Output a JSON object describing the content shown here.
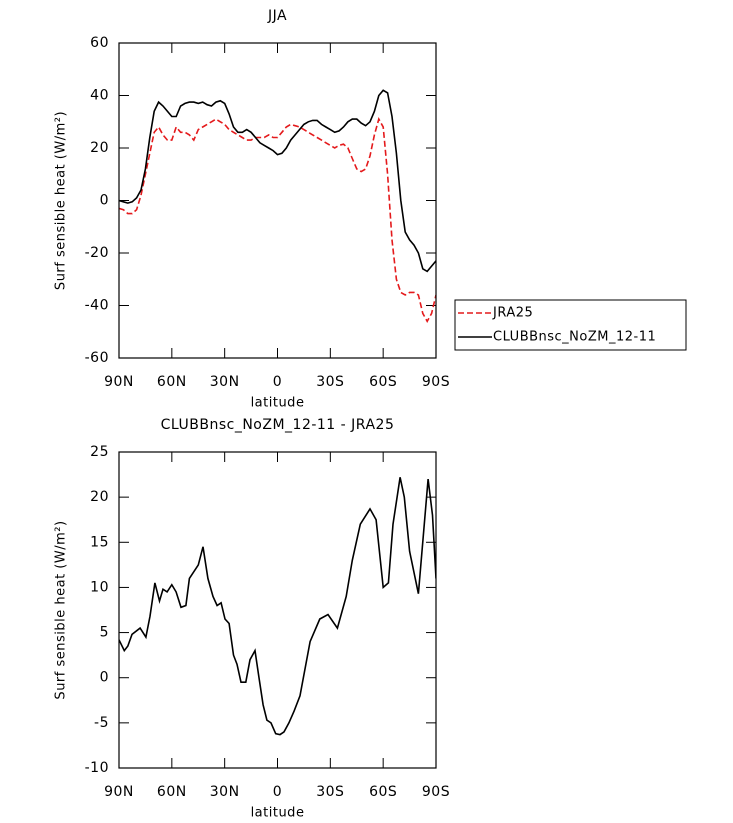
{
  "chart_data": [
    {
      "type": "line",
      "title": "JJA",
      "xlabel": "latitude",
      "ylabel": "Surf sensible heat (W/m²)",
      "x": [
        90,
        87.5,
        85,
        82.5,
        80,
        77.5,
        75,
        72.5,
        70,
        67.5,
        65,
        62.5,
        60,
        57.5,
        55,
        52.5,
        50,
        47.5,
        45,
        42.5,
        40,
        37.5,
        35,
        32.5,
        30,
        27.5,
        25,
        22.5,
        20,
        17.5,
        15,
        12.5,
        10,
        7.5,
        5,
        2.5,
        0,
        -2.5,
        -5,
        -7.5,
        -10,
        -12.5,
        -15,
        -17.5,
        -20,
        -22.5,
        -25,
        -27.5,
        -30,
        -32.5,
        -35,
        -37.5,
        -40,
        -42.5,
        -45,
        -47.5,
        -50,
        -52.5,
        -55,
        -57.5,
        -60,
        -62.5,
        -65,
        -67.5,
        -70,
        -72.5,
        -75,
        -77.5,
        -80,
        -82.5,
        -85,
        -87.5,
        -90
      ],
      "series": [
        {
          "name": "JRA25",
          "color": "#e41a1c",
          "dash": true,
          "values": [
            -3,
            -3.5,
            -5,
            -5,
            -3.5,
            2,
            10,
            18,
            26,
            28,
            25,
            23,
            23,
            28,
            26,
            26,
            25,
            23,
            27,
            28,
            29,
            30,
            31,
            30,
            29,
            27,
            26,
            25,
            24,
            23,
            23,
            24,
            24,
            24,
            25,
            24,
            24,
            26,
            28,
            29,
            28.5,
            28,
            27,
            26,
            25,
            24,
            23,
            22,
            21,
            20,
            21,
            21.5,
            20,
            16,
            12,
            11,
            12,
            17,
            25,
            31,
            28,
            10,
            -15,
            -30,
            -35,
            -36,
            -35,
            -35,
            -36,
            -43,
            -46,
            -43,
            -36
          ]
        },
        {
          "name": "CLUBBnsc_NoZM_12-11",
          "color": "#000000",
          "dash": false,
          "values": [
            0,
            -0.5,
            -1,
            -0.5,
            1,
            4,
            12,
            24,
            34,
            37.5,
            36,
            34,
            32,
            32,
            36,
            37,
            37.5,
            37.5,
            37,
            37.5,
            36.5,
            36,
            37.5,
            38,
            37,
            33,
            28,
            26,
            26,
            27,
            26,
            24,
            22,
            21,
            20,
            19,
            17.5,
            18,
            20,
            23,
            25,
            27,
            29,
            30,
            30.5,
            30.5,
            29,
            28,
            27,
            26,
            26.5,
            28,
            30,
            31,
            31,
            29.5,
            28.5,
            30,
            34,
            40,
            42,
            41,
            32,
            18,
            0,
            -12,
            -15,
            -17,
            -20,
            -26,
            -27,
            -25,
            -23
          ]
        }
      ],
      "xlim": [
        90,
        -90
      ],
      "xticks": [
        {
          "value": 90,
          "label": "90N"
        },
        {
          "value": 60,
          "label": "60N"
        },
        {
          "value": 30,
          "label": "30N"
        },
        0,
        {
          "value": -30,
          "label": "30S"
        },
        {
          "value": -60,
          "label": "60S"
        },
        {
          "value": -90,
          "label": "90S"
        }
      ],
      "ylim": [
        -60,
        60
      ],
      "yticks": [
        -60,
        -40,
        -20,
        0,
        20,
        40,
        60
      ],
      "legend": "right"
    },
    {
      "type": "line",
      "title": "CLUBBnsc_NoZM_12-11 - JRA25",
      "xlabel": "latitude",
      "ylabel": "Surf sensible heat (W/m²)",
      "x": [
        90,
        87,
        85,
        82.6,
        78,
        74.7,
        72.4,
        69.6,
        67,
        65,
        62.7,
        60,
        57.6,
        54.8,
        52,
        50,
        45,
        42.3,
        39.5,
        36.6,
        34.3,
        32,
        29.8,
        27.5,
        25,
        23,
        20.7,
        18,
        15.6,
        12.8,
        10.5,
        8.2,
        6,
        3.7,
        1,
        -1.4,
        -3.7,
        -6.5,
        -9.4,
        -12.8,
        -18.5,
        -24,
        -28.7,
        -34,
        -39,
        -42.5,
        -47,
        -52.5,
        -56,
        -60,
        -63,
        -65.6,
        -69.6,
        -72,
        -75,
        -80,
        -85.5,
        -88,
        -90
      ],
      "values": [
        4.2,
        3,
        3.5,
        4.8,
        5.5,
        4.5,
        6.8,
        10.5,
        8.5,
        9.8,
        9.5,
        10.3,
        9.5,
        7.8,
        8,
        11,
        12.5,
        14.5,
        11,
        9,
        8,
        8.3,
        6.5,
        6,
        2.5,
        1.5,
        -0.5,
        -0.5,
        2,
        3,
        0,
        -3,
        -4.7,
        -5,
        -6.2,
        -6.3,
        -6,
        -5,
        -3.7,
        -2,
        4,
        6.5,
        7,
        5.5,
        9,
        13,
        17,
        18.7,
        17.5,
        10,
        10.5,
        17,
        22.2,
        20,
        14,
        9.3,
        22,
        18,
        11
      ],
      "color": "#000000",
      "xlim": [
        90,
        -90
      ],
      "xticks": [
        {
          "value": 90,
          "label": "90N"
        },
        {
          "value": 60,
          "label": "60N"
        },
        {
          "value": 30,
          "label": "30N"
        },
        0,
        {
          "value": -30,
          "label": "30S"
        },
        {
          "value": -60,
          "label": "60S"
        },
        {
          "value": -90,
          "label": "90S"
        }
      ],
      "ylim": [
        -10,
        25
      ],
      "yticks": [
        -10,
        -5,
        0,
        5,
        10,
        15,
        20,
        25
      ]
    }
  ]
}
